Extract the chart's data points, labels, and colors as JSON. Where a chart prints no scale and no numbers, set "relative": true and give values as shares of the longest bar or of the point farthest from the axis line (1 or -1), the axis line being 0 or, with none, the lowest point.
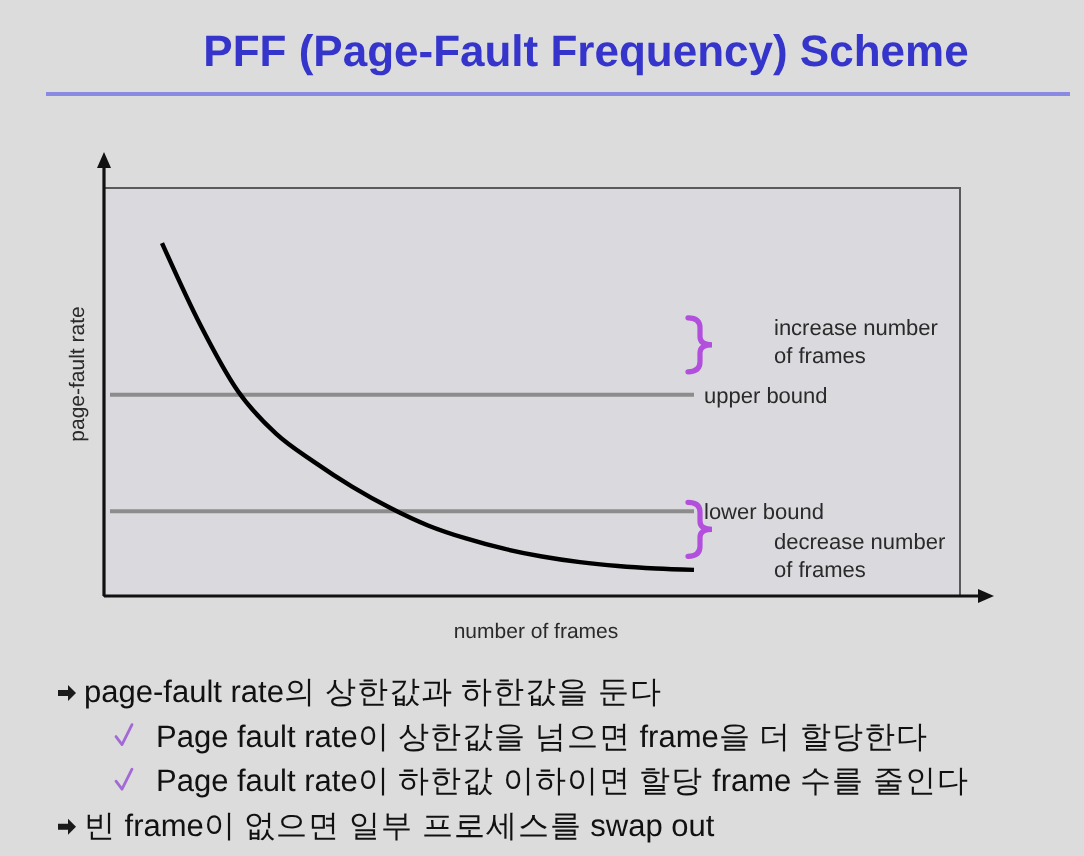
{
  "chart_data": {
    "type": "line",
    "title": "PFF (Page-Fault Frequency) Scheme",
    "xlabel": "number of frames",
    "ylabel": "page-fault rate",
    "relative": true,
    "categories": [
      null,
      null,
      null,
      null,
      null,
      null,
      null,
      null,
      null,
      null,
      null,
      null,
      null,
      null,
      null
    ],
    "series": [
      {
        "color": "#000000",
        "values": [
          1,
          0.77,
          0.58,
          0.46,
          0.38,
          0.31,
          0.25,
          0.2,
          0.163,
          0.134,
          0.112,
          0.096,
          0.085,
          0.078,
          0.074
        ]
      }
    ],
    "ref_lines": [
      {
        "axis": "y",
        "value": 0.57,
        "label": "upper bound",
        "color": "#8c8c8c"
      },
      {
        "axis": "y",
        "value": 0.24,
        "label": "lower bound",
        "color": "#8c8c8c"
      }
    ],
    "annotations": [
      "increase number of frames",
      "decrease number of frames",
      "page-fault rate의 상한값과 하한값을 둔다",
      "Page fault rate이 상한값을 넘으면 frame을 더 할당한다",
      "Page fault rate이 하한값 이하이면 할당 frame 수를 줄인다",
      "빈 frame이 없으면 일부 프로세스를 swap out"
    ],
    "line_style": "solid"
  }
}
